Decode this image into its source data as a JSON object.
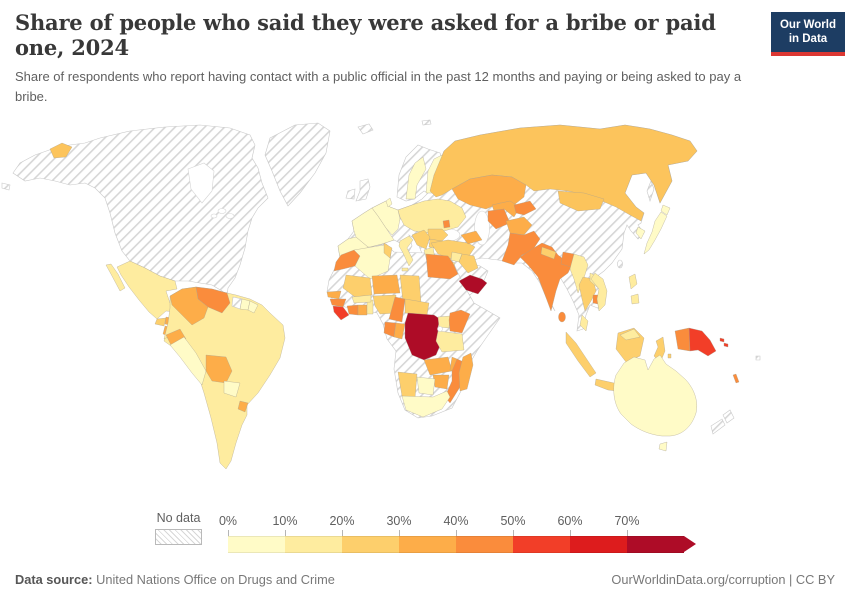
{
  "header": {
    "title": "Share of people who said they were asked for a bribe or paid one, 2024",
    "subtitle": "Share of respondents who report having contact with a public official in the past 12 months and paying or being asked to pay a bribe.",
    "logo": {
      "line1": "Our World",
      "line2": "in Data",
      "bg": "#1d3d63",
      "accent": "#dc3732"
    }
  },
  "palette": {
    "p0": "#FFFBC7",
    "p1": "#FEEC9F",
    "p2": "#FDCF6C",
    "p3": "#FDAD49",
    "p4": "#FA8C3C",
    "p5": "#F23E28",
    "p6": "#DD1C1D",
    "p7": "#AE0C27",
    "ru": "#FCC45C",
    "sea": "#ffffff",
    "coast": "#c9c9c9",
    "border": "#a89f8d",
    "hatch_line": "#d6d6d6"
  },
  "legend": {
    "no_data_label": "No data",
    "bins": [
      {
        "tick": "0%",
        "range": "0-10%",
        "color": "#FFFBC7"
      },
      {
        "tick": "10%",
        "range": "10-20%",
        "color": "#FEEC9F"
      },
      {
        "tick": "20%",
        "range": "20-30%",
        "color": "#FDCF6C"
      },
      {
        "tick": "30%",
        "range": "30-40%",
        "color": "#FDAD49"
      },
      {
        "tick": "40%",
        "range": "40-50%",
        "color": "#FA8C3C"
      },
      {
        "tick": "50%",
        "range": "50-60%",
        "color": "#F23E28"
      },
      {
        "tick": "60%",
        "range": "60-70%",
        "color": "#DD1C1D"
      },
      {
        "tick": "70%",
        "range": "70%+",
        "color": "#AE0C27"
      }
    ]
  },
  "footer": {
    "datasource_label": "Data source:",
    "datasource_value": "United Nations Office on Drugs and Crime",
    "attribution": "OurWorldinData.org/corruption | CC BY"
  },
  "chart_data": {
    "type": "choropleth",
    "title": "Share of people who said they were asked for a bribe or paid one",
    "year": 2024,
    "unit": "share of respondents (%)",
    "legend_position": "bottom",
    "legend_bins": [
      "0-10%",
      "10-20%",
      "20-30%",
      "30-40%",
      "40-50%",
      "50-60%",
      "60-70%",
      "70%+",
      "No data"
    ],
    "countries": {
      "Mexico": "10-20%",
      "Guatemala": "20-30%",
      "Honduras": "30-40%",
      "Nicaragua": "30-40%",
      "Costa Rica": "10-20%",
      "Panama": "30-40%",
      "Jamaica": "30-40%",
      "Haiti": "30-40%",
      "Dominican Republic": "40-50%",
      "Puerto Rico": "40-50%",
      "Trinidad and Tobago": "30-40%",
      "Venezuela": "40-50%",
      "Colombia": "30-40%",
      "Ecuador": "30-40%",
      "Peru": "0-10%",
      "Brazil": "10-20%",
      "Bolivia": "30-40%",
      "Paraguay": "0-10%",
      "Chile": "10-20%",
      "Argentina": "10-20%",
      "Uruguay": "30-40%",
      "Suriname": "10-20%",
      "Spain": "0-10%",
      "Portugal": "0-10%",
      "France": "0-10%",
      "Germany": "0-10%",
      "Sweden": "0-10%",
      "Finland": "0-10%",
      "Denmark": "0-10%",
      "Poland": "10-20%",
      "Ukraine": "10-20%",
      "Belarus": "10-20%",
      "Italy": "10-20%",
      "Greece": "10-20%",
      "Romania": "20-30%",
      "Bulgaria": "20-30%",
      "Serbia": "20-30%",
      "Moldova": "40-50%",
      "Russia": "20-30%",
      "Kazakhstan": "30-40%",
      "Uzbekistan": "30-40%",
      "Turkmenistan": "40-50%",
      "Kyrgyzstan": "40-50%",
      "Azerbaijan": "30-40%",
      "Georgia": "30-40%",
      "Armenia": "30-40%",
      "Turkey": "20-30%",
      "Syria": "10-20%",
      "Iraq": "20-30%",
      "Jordan": "10-20%",
      "Yemen": "70%+",
      "Afghanistan": "30-40%",
      "Pakistan": "40-50%",
      "India": "40-50%",
      "Nepal": "20-30%",
      "Bangladesh": "40-50%",
      "Sri Lanka": "40-50%",
      "Myanmar": "10-20%",
      "Thailand": "20-30%",
      "Laos": "10-20%",
      "Cambodia": "40-50%",
      "Vietnam": "10-20%",
      "Malaysia": "10-20%",
      "Indonesia": "20-30%",
      "Philippines": "10-20%",
      "Mongolia": "20-30%",
      "South Korea": "0-10%",
      "Japan": "0-10%",
      "Morocco": "40-50%",
      "Algeria": "0-10%",
      "Tunisia": "20-30%",
      "Egypt": "40-50%",
      "Mali": "20-30%",
      "Niger": "30-40%",
      "Chad": "20-30%",
      "Senegal": "30-40%",
      "Guinea": "40-50%",
      "Sierra Leone": "50-60%",
      "Liberia": "50-60%",
      "Cote d'Ivoire": "40-50%",
      "Ghana": "30-40%",
      "Burkina Faso": "10-20%",
      "Togo": "10-20%",
      "Benin": "10-20%",
      "Nigeria": "20-30%",
      "Cameroon": "40-50%",
      "Central African Republic": "20-30%",
      "Gabon": "40-50%",
      "Republic of the Congo": "30-40%",
      "Democratic Republic of Congo": "70%+",
      "Uganda": "10-20%",
      "Kenya": "40-50%",
      "Tanzania": "10-20%",
      "Zambia": "30-40%",
      "Malawi": "30-40%",
      "Mozambique": "40-50%",
      "Zimbabwe": "30-40%",
      "Botswana": "0-10%",
      "Namibia": "20-30%",
      "South Africa": "0-10%",
      "Madagascar": "30-40%",
      "Australia": "0-10%",
      "Papua New Guinea": "50-60%",
      "Solomon Islands": "50-60%",
      "Vanuatu": "40-50%"
    },
    "no_data": [
      "Canada",
      "United States",
      "Greenland",
      "Iceland",
      "United Kingdom",
      "Ireland",
      "Norway",
      "Cuba",
      "Guyana",
      "Libya",
      "Mauritania",
      "Western Sahara",
      "Sudan",
      "South Sudan",
      "Ethiopia",
      "Eritrea",
      "Somalia",
      "Angola",
      "Saudi Arabia",
      "Oman",
      "United Arab Emirates",
      "Iran",
      "China",
      "North Korea",
      "Taiwan",
      "New Zealand",
      "Fiji"
    ]
  }
}
